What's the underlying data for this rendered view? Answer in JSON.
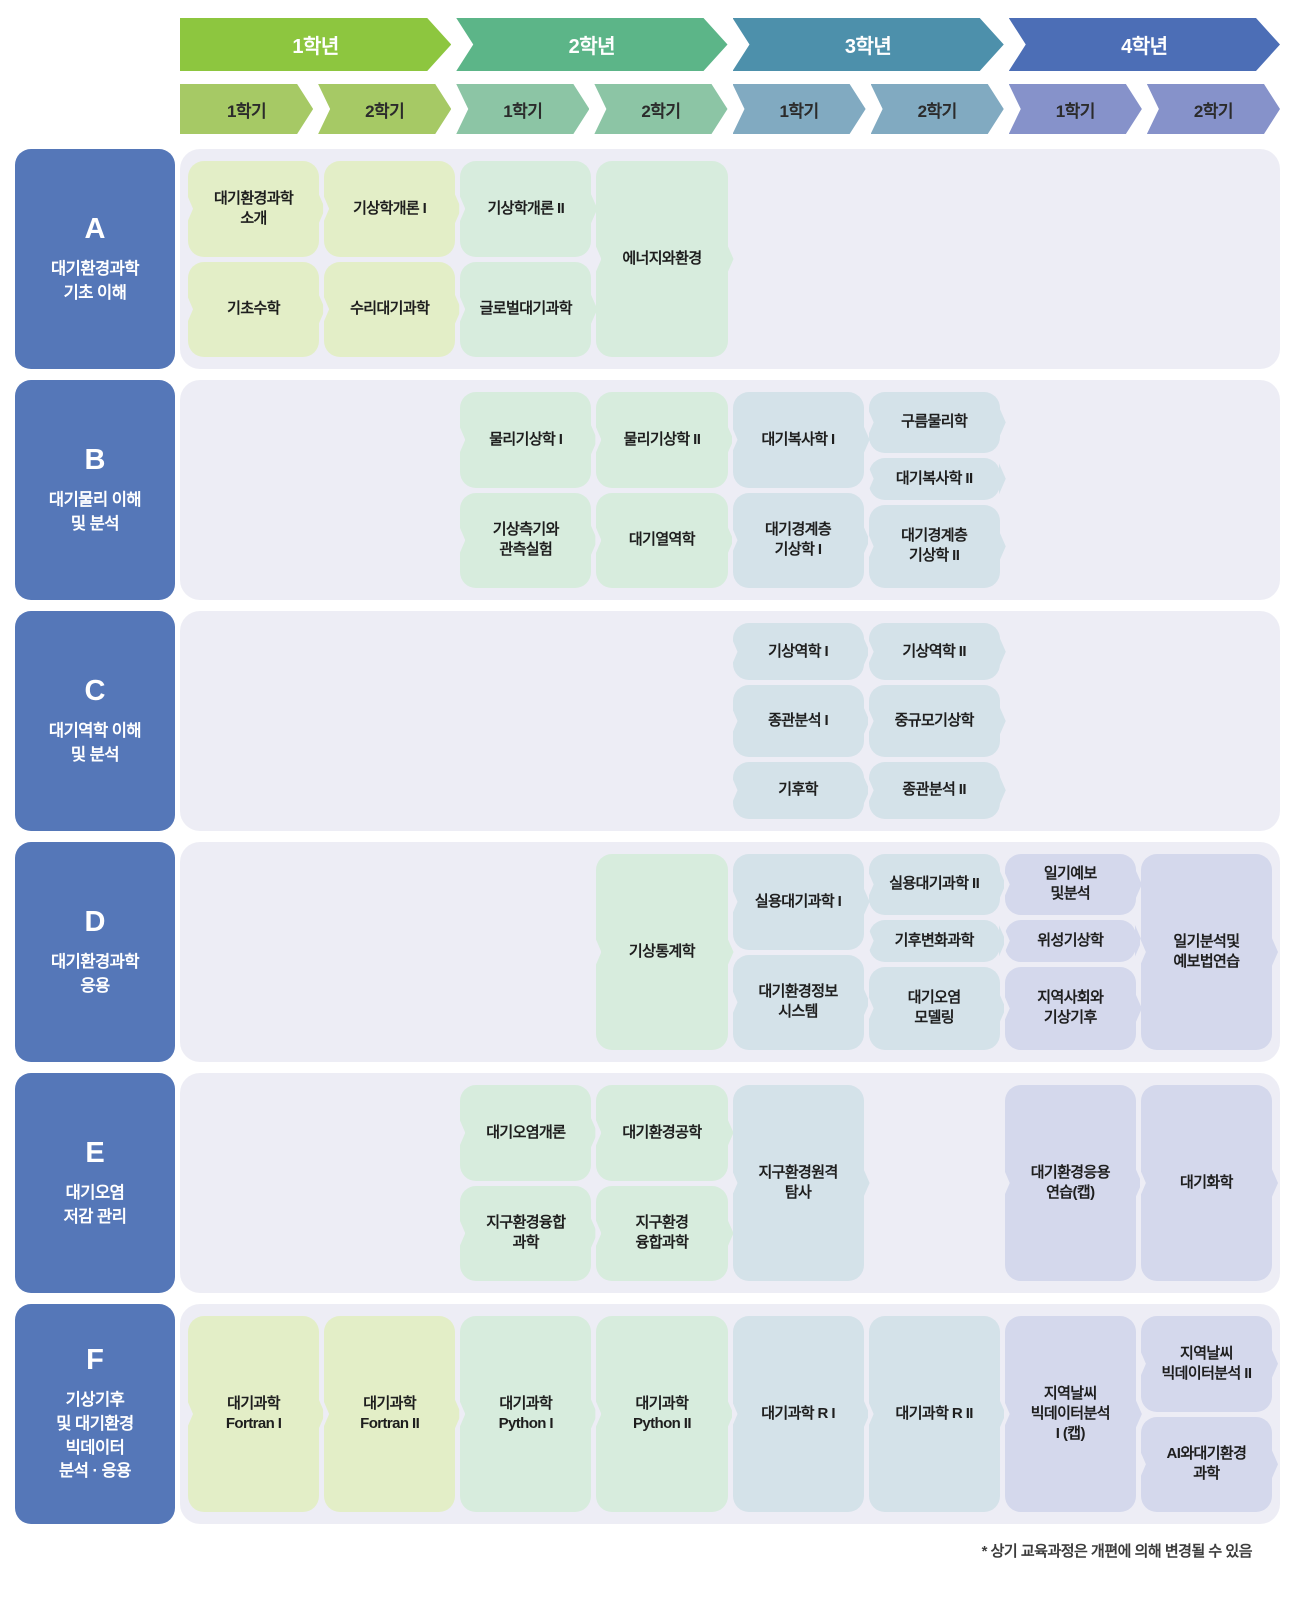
{
  "header": {
    "years": [
      "1학년",
      "2학년",
      "3학년",
      "4학년"
    ],
    "semesters": [
      "1학기",
      "2학기",
      "1학기",
      "2학기",
      "1학기",
      "2학기",
      "1학기",
      "2학기"
    ]
  },
  "colors": {
    "years": [
      {
        "header": "#8dc63f",
        "semester": "#a6c965",
        "cell": "#e3eec7"
      },
      {
        "header": "#5cb588",
        "semester": "#8cc5a5",
        "cell": "#d7ecdd"
      },
      {
        "header": "#4d90ab",
        "semester": "#81aac1",
        "cell": "#d4e2e9"
      },
      {
        "header": "#4c6eb6",
        "semester": "#8692ca",
        "cell": "#d4d8ec"
      }
    ],
    "category_box": "#5577b8",
    "row_background": "#ededf5"
  },
  "categories": [
    {
      "letter": "A",
      "title": "대기환경과학\n기초 이해"
    },
    {
      "letter": "B",
      "title": "대기물리 이해\n및 분석"
    },
    {
      "letter": "C",
      "title": "대기역학 이해\n및 분석"
    },
    {
      "letter": "D",
      "title": "대기환경과학\n응용"
    },
    {
      "letter": "E",
      "title": "대기오염\n저감 관리"
    },
    {
      "letter": "F",
      "title": "기상기후\n및 대기환경\n빅데이터\n분석 · 응용"
    }
  ],
  "rows": [
    {
      "category": "A",
      "columns": [
        [
          {
            "label": "대기환경과학\n소개",
            "size": 100
          },
          {
            "label": "기초수학",
            "size": 100
          }
        ],
        [
          {
            "label": "기상학개론 I",
            "size": 100
          },
          {
            "label": "수리대기과학",
            "size": 100
          }
        ],
        [
          {
            "label": "기상학개론 II",
            "size": 100
          },
          {
            "label": "글로벌대기과학",
            "size": 100
          }
        ],
        [
          {
            "label": "에너지와환경",
            "size": 200
          }
        ],
        [],
        [],
        [],
        []
      ]
    },
    {
      "category": "B",
      "columns": [
        [],
        [],
        [
          {
            "label": "물리기상학 I",
            "size": 100
          },
          {
            "label": "기상측기와\n관측실험",
            "size": 100
          }
        ],
        [
          {
            "label": "물리기상학 II",
            "size": 100
          },
          {
            "label": "대기열역학",
            "size": 100
          }
        ],
        [
          {
            "label": "대기복사학 I",
            "size": 100
          },
          {
            "label": "대기경계층\n기상학 I",
            "size": 100
          }
        ],
        [
          {
            "label": "구름물리학",
            "size": 63
          },
          {
            "label": "대기복사학 II",
            "size": 42
          },
          {
            "label": "대기경계층\n기상학 II",
            "size": 88
          }
        ],
        [],
        []
      ]
    },
    {
      "category": "C",
      "columns": [
        [],
        [],
        [],
        [],
        [
          {
            "label": "기상역학 I",
            "size": 58
          },
          {
            "label": "종관분석 I",
            "size": 73
          },
          {
            "label": "기후학",
            "size": 58
          }
        ],
        [
          {
            "label": "기상역학 II",
            "size": 58
          },
          {
            "label": "중규모기상학",
            "size": 73
          },
          {
            "label": "종관분석 II",
            "size": 58
          }
        ],
        [],
        []
      ]
    },
    {
      "category": "D",
      "columns": [
        [],
        [],
        [],
        [
          {
            "label": "기상통계학",
            "size": 200
          }
        ],
        [
          {
            "label": "실용대기과학 I",
            "size": 100
          },
          {
            "label": "대기환경정보\n시스템",
            "size": 100
          }
        ],
        [
          {
            "label": "실용대기과학 II",
            "size": 63
          },
          {
            "label": "기후변화과학",
            "size": 42
          },
          {
            "label": "대기오염\n모델링",
            "size": 88
          }
        ],
        [
          {
            "label": "일기예보\n및분석",
            "size": 63
          },
          {
            "label": "위성기상학",
            "size": 42
          },
          {
            "label": "지역사회와\n기상기후",
            "size": 88
          }
        ],
        [
          {
            "label": "일기분석및\n예보법연습",
            "size": 200
          }
        ]
      ]
    },
    {
      "category": "E",
      "columns": [
        [],
        [],
        [
          {
            "label": "대기오염개론",
            "size": 100
          },
          {
            "label": "지구환경융합\n과학",
            "size": 100
          }
        ],
        [
          {
            "label": "대기환경공학",
            "size": 100
          },
          {
            "label": "지구환경\n융합과학",
            "size": 100
          }
        ],
        [
          {
            "label": "지구환경원격\n탐사",
            "size": 200
          }
        ],
        [],
        [
          {
            "label": "대기환경응용\n연습(캡)",
            "size": 200
          }
        ],
        [
          {
            "label": "대기화학",
            "size": 200
          }
        ]
      ]
    },
    {
      "category": "F",
      "columns": [
        [
          {
            "label": "대기과학\nFortran I",
            "size": 200
          }
        ],
        [
          {
            "label": "대기과학\nFortran II",
            "size": 200
          }
        ],
        [
          {
            "label": "대기과학\nPython I",
            "size": 200
          }
        ],
        [
          {
            "label": "대기과학\nPython II",
            "size": 200
          }
        ],
        [
          {
            "label": "대기과학 R I",
            "size": 200
          }
        ],
        [
          {
            "label": "대기과학 R II",
            "size": 200
          }
        ],
        [
          {
            "label": "지역날씨\n빅데이터분석\nI (캡)",
            "size": 200
          }
        ],
        [
          {
            "label": "지역날씨\n빅데이터분석 II",
            "size": 100
          },
          {
            "label": "AI와대기환경\n과학",
            "size": 100
          }
        ]
      ]
    }
  ],
  "footnote": "* 상기 교육과정은 개편에 의해 변경될 수 있음"
}
